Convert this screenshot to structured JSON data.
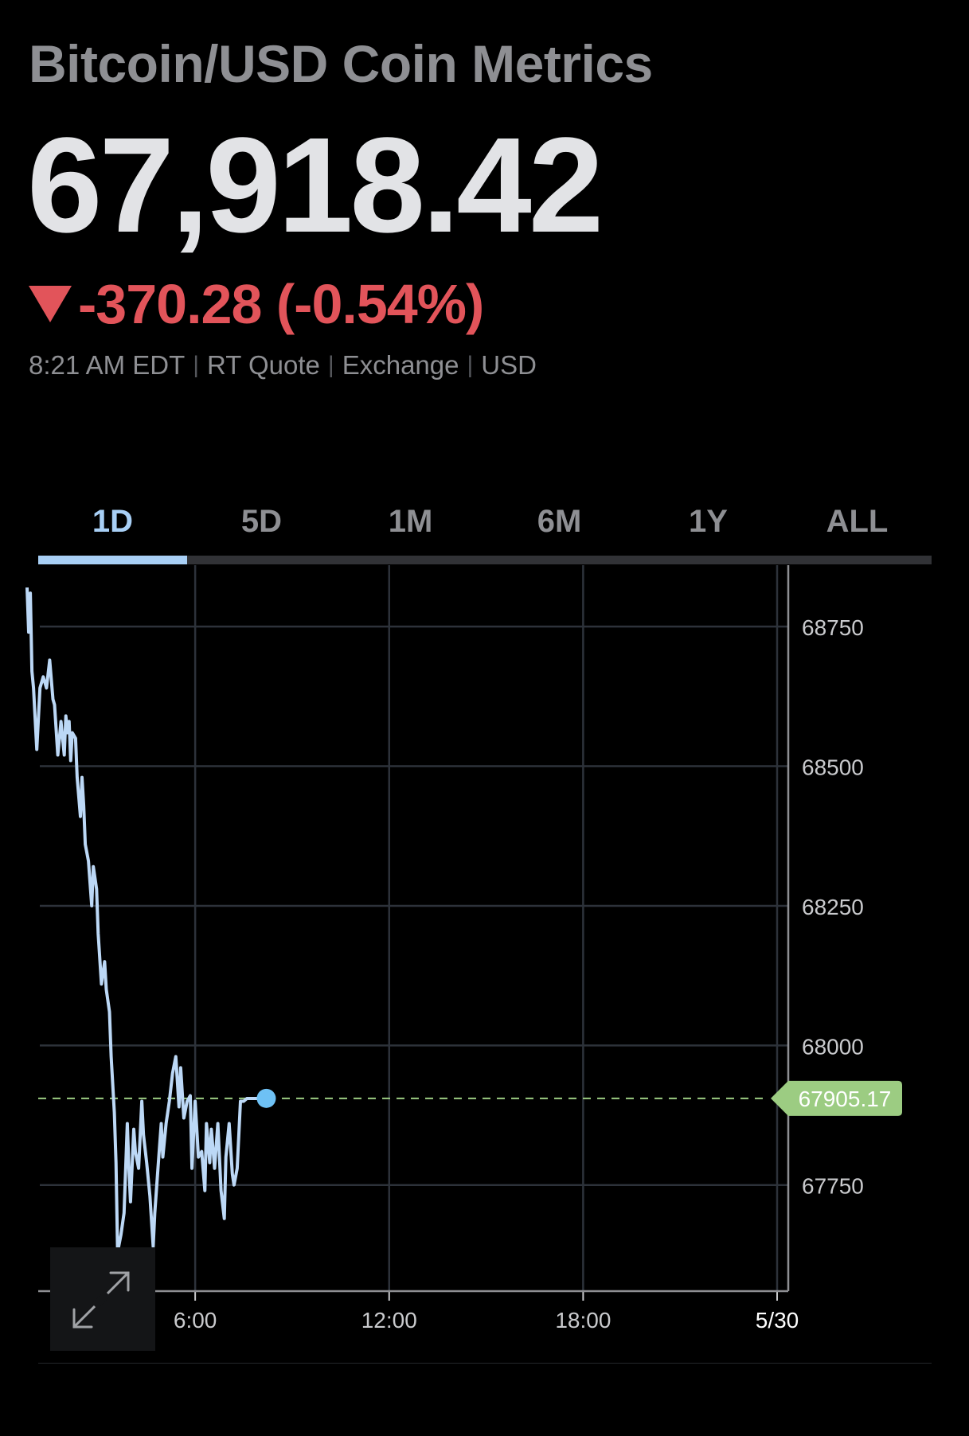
{
  "header": {
    "title": "Bitcoin/USD Coin Metrics",
    "price": "67,918.42",
    "change": "-370.28 (-0.54%)",
    "change_direction": "down",
    "change_color": "#e2545a",
    "meta": [
      "8:21 AM EDT",
      "RT Quote",
      "Exchange",
      "USD"
    ]
  },
  "tabs": [
    {
      "label": "1D",
      "active": true
    },
    {
      "label": "5D",
      "active": false
    },
    {
      "label": "1M",
      "active": false
    },
    {
      "label": "6M",
      "active": false
    },
    {
      "label": "1Y",
      "active": false
    },
    {
      "label": "ALL",
      "active": false
    }
  ],
  "colors": {
    "line": "#bcd8f6",
    "accent": "#a8cff5",
    "current_dot": "#6ec1f5",
    "price_tag": "#9ccc82",
    "grid": "#2d323a"
  },
  "chart_data": {
    "type": "line",
    "x_ticks": [
      {
        "label": "6:00",
        "t": 6
      },
      {
        "label": "12:00",
        "t": 12
      },
      {
        "label": "18:00",
        "t": 18
      },
      {
        "label": "5/30",
        "t": 24
      }
    ],
    "y_ticks": [
      68750,
      68500,
      68250,
      68000,
      67750
    ],
    "xlim": [
      0.8,
      24
    ],
    "ylim": [
      67560,
      68860
    ],
    "last_price": 67905.17,
    "last_price_label": "67905.17",
    "series": [
      {
        "x": [
          0.8,
          0.85,
          0.9,
          0.95,
          1.0,
          1.1,
          1.2,
          1.3,
          1.4,
          1.5,
          1.6,
          1.65,
          1.75,
          1.85,
          1.95,
          2.0,
          2.05,
          2.1,
          2.15,
          2.2,
          2.3,
          2.35,
          2.45,
          2.5,
          2.55,
          2.6,
          2.7,
          2.8,
          2.85,
          2.95,
          3.0,
          3.1,
          3.2,
          3.25,
          3.35,
          3.4,
          3.5,
          3.55,
          3.6,
          3.7,
          3.8,
          3.9,
          3.95,
          4.0,
          4.1,
          4.15,
          4.25,
          4.35,
          4.4,
          4.5,
          4.6,
          4.7,
          4.75,
          4.85,
          4.95,
          5.0,
          5.1,
          5.2,
          5.3,
          5.4,
          5.5,
          5.55,
          5.65,
          5.75,
          5.85,
          5.9,
          6.0,
          6.1,
          6.2,
          6.3,
          6.35,
          6.45,
          6.5,
          6.6,
          6.7,
          6.8,
          6.9,
          6.95,
          7.05,
          7.15,
          7.2,
          7.3,
          7.4,
          7.5,
          7.6,
          7.7,
          7.8,
          7.9,
          8.0,
          8.1,
          8.2
        ],
        "y": [
          68820,
          68740,
          68810,
          68670,
          68640,
          68530,
          68640,
          68660,
          68640,
          68690,
          68620,
          68610,
          68520,
          68580,
          68520,
          68590,
          68560,
          68580,
          68510,
          68560,
          68550,
          68480,
          68410,
          68480,
          68430,
          68360,
          68330,
          68250,
          68320,
          68280,
          68200,
          68110,
          68150,
          68100,
          68060,
          67980,
          67880,
          67790,
          67630,
          67660,
          67700,
          67860,
          67780,
          67720,
          67850,
          67810,
          67780,
          67900,
          67840,
          67790,
          67730,
          67640,
          67700,
          67780,
          67860,
          67800,
          67860,
          67900,
          67950,
          67980,
          67890,
          67960,
          67870,
          67900,
          67910,
          67780,
          67900,
          67800,
          67810,
          67740,
          67860,
          67790,
          67850,
          67780,
          67860,
          67740,
          67690,
          67800,
          67860,
          67770,
          67750,
          67780,
          67900,
          67900,
          67905,
          67905,
          67905,
          67905,
          67905,
          67905,
          67905.17
        ]
      }
    ]
  },
  "expand_icon": "expand-diagonal-icon"
}
